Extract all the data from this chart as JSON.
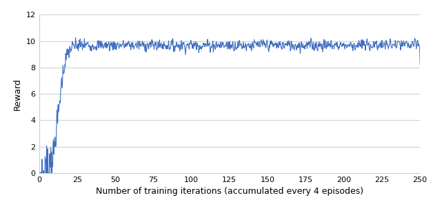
{
  "title": "",
  "xlabel": "Number of training iterations (accumulated every 4 episodes)",
  "ylabel": "Reward",
  "xlim": [
    0,
    250
  ],
  "ylim": [
    0,
    12
  ],
  "xticks": [
    0,
    25,
    50,
    75,
    100,
    125,
    150,
    175,
    200,
    225,
    250
  ],
  "yticks": [
    0,
    2,
    4,
    6,
    8,
    10,
    12
  ],
  "line_color": "#3d6dbf",
  "background_color": "#ffffff",
  "grid_color": "#cccccc",
  "seed": 7,
  "n_points": 1000,
  "figsize": [
    6.28,
    3.06
  ],
  "dpi": 100,
  "linewidth": 0.8,
  "xlabel_fontsize": 9,
  "ylabel_fontsize": 9,
  "tick_fontsize": 8
}
